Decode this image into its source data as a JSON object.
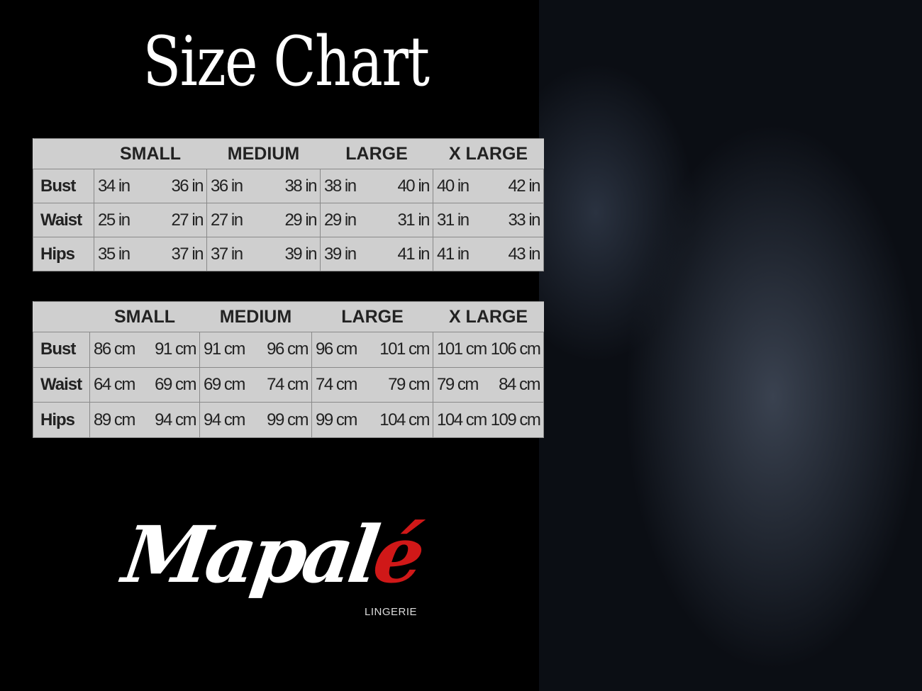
{
  "title": "Size Chart",
  "sizes": [
    "SMALL",
    "MEDIUM",
    "LARGE",
    "X LARGE"
  ],
  "inches": {
    "rows": [
      {
        "label": "Bust",
        "values": [
          "34 in",
          "36 in",
          "36 in",
          "38 in",
          "38 in",
          "40 in",
          "40 in",
          "42 in"
        ]
      },
      {
        "label": "Waist",
        "values": [
          "25 in",
          "27 in",
          "27 in",
          "29 in",
          "29 in",
          "31 in",
          "31 in",
          "33 in"
        ]
      },
      {
        "label": "Hips",
        "values": [
          "35 in",
          "37 in",
          "37 in",
          "39 in",
          "39 in",
          "41 in",
          "41 in",
          "43 in"
        ]
      }
    ]
  },
  "centimeters": {
    "rows": [
      {
        "label": "Bust",
        "values": [
          "86 cm",
          "91 cm",
          "91 cm",
          "96 cm",
          "96 cm",
          "101 cm",
          "101 cm",
          "106 cm"
        ]
      },
      {
        "label": "Waist",
        "values": [
          "64 cm",
          "69 cm",
          "69 cm",
          "74 cm",
          "74 cm",
          "79  cm",
          "79 cm",
          "84 cm"
        ]
      },
      {
        "label": "Hips",
        "values": [
          "89 cm",
          "94 cm",
          "94 cm",
          "99 cm",
          "99 cm",
          "104 cm",
          "104 cm",
          "109 cm"
        ]
      }
    ]
  },
  "brand": {
    "name_main": "Mapal",
    "name_accent": "é",
    "tagline": "LINGERIE",
    "accent_color": "#d01818"
  }
}
